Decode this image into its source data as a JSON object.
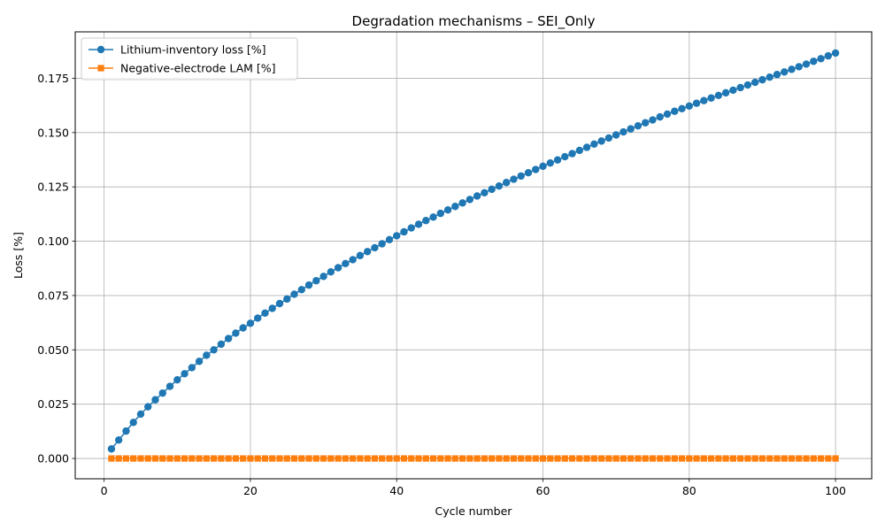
{
  "chart_data": {
    "type": "line",
    "title": "Degradation mechanisms – SEI_Only",
    "xlabel": "Cycle number",
    "ylabel": "Loss [%]",
    "xlim": [
      -3.95,
      104.95
    ],
    "ylim": [
      -0.00935,
      0.19635
    ],
    "xticks": [
      0,
      20,
      40,
      60,
      80,
      100
    ],
    "xtick_labels": [
      "0",
      "20",
      "40",
      "60",
      "80",
      "100"
    ],
    "yticks": [
      0.0,
      0.025,
      0.05,
      0.075,
      0.1,
      0.125,
      0.15,
      0.175
    ],
    "ytick_labels": [
      "0.000",
      "0.025",
      "0.050",
      "0.075",
      "0.100",
      "0.125",
      "0.150",
      "0.175"
    ],
    "grid": true,
    "legend_position": "top-left",
    "x": [
      1,
      2,
      3,
      4,
      5,
      6,
      7,
      8,
      9,
      10,
      11,
      12,
      13,
      14,
      15,
      16,
      17,
      18,
      19,
      20,
      21,
      22,
      23,
      24,
      25,
      26,
      27,
      28,
      29,
      30,
      31,
      32,
      33,
      34,
      35,
      36,
      37,
      38,
      39,
      40,
      41,
      42,
      43,
      44,
      45,
      46,
      47,
      48,
      49,
      50,
      51,
      52,
      53,
      54,
      55,
      56,
      57,
      58,
      59,
      60,
      61,
      62,
      63,
      64,
      65,
      66,
      67,
      68,
      69,
      70,
      71,
      72,
      73,
      74,
      75,
      76,
      77,
      78,
      79,
      80,
      81,
      82,
      83,
      84,
      85,
      86,
      87,
      88,
      89,
      90,
      91,
      92,
      93,
      94,
      95,
      96,
      97,
      98,
      99,
      100
    ],
    "series": [
      {
        "name": "Lithium-inventory loss [%]",
        "color": "#1f77b4",
        "marker": "circle",
        "values": [
          0.0044,
          0.0085,
          0.0126,
          0.0166,
          0.0204,
          0.0238,
          0.027,
          0.0301,
          0.0332,
          0.0362,
          0.039,
          0.0418,
          0.0447,
          0.0475,
          0.05,
          0.0526,
          0.0552,
          0.0577,
          0.0601,
          0.0622,
          0.0646,
          0.0669,
          0.0691,
          0.0713,
          0.0734,
          0.0756,
          0.0777,
          0.0798,
          0.0818,
          0.0838,
          0.0859,
          0.0878,
          0.0897,
          0.0915,
          0.0934,
          0.0952,
          0.097,
          0.0988,
          0.1007,
          0.1025,
          0.1043,
          0.1061,
          0.1078,
          0.1095,
          0.1111,
          0.1128,
          0.1144,
          0.116,
          0.1176,
          0.1192,
          0.1208,
          0.1223,
          0.1239,
          0.1254,
          0.127,
          0.1285,
          0.13,
          0.1315,
          0.133,
          0.1345,
          0.136,
          0.1374,
          0.1389,
          0.1403,
          0.1418,
          0.1432,
          0.1447,
          0.1461,
          0.1475,
          0.1489,
          0.1503,
          0.1517,
          0.1531,
          0.1545,
          0.1558,
          0.1572,
          0.1585,
          0.1598,
          0.161,
          0.1622,
          0.1635,
          0.1647,
          0.1659,
          0.1671,
          0.1683,
          0.1695,
          0.1707,
          0.1719,
          0.1731,
          0.1743,
          0.1755,
          0.1767,
          0.1779,
          0.1791,
          0.1803,
          0.1815,
          0.1828,
          0.184,
          0.1853,
          0.1866
        ]
      },
      {
        "name": "Negative-electrode LAM [%]",
        "color": "#ff7f0e",
        "marker": "square",
        "values": [
          0,
          0,
          0,
          0,
          0,
          0,
          0,
          0,
          0,
          0,
          0,
          0,
          0,
          0,
          0,
          0,
          0,
          0,
          0,
          0,
          0,
          0,
          0,
          0,
          0,
          0,
          0,
          0,
          0,
          0,
          0,
          0,
          0,
          0,
          0,
          0,
          0,
          0,
          0,
          0,
          0,
          0,
          0,
          0,
          0,
          0,
          0,
          0,
          0,
          0,
          0,
          0,
          0,
          0,
          0,
          0,
          0,
          0,
          0,
          0,
          0,
          0,
          0,
          0,
          0,
          0,
          0,
          0,
          0,
          0,
          0,
          0,
          0,
          0,
          0,
          0,
          0,
          0,
          0,
          0,
          0,
          0,
          0,
          0,
          0,
          0,
          0,
          0,
          0,
          0,
          0,
          0,
          0,
          0,
          0,
          0,
          0,
          0,
          0,
          0
        ]
      }
    ]
  }
}
